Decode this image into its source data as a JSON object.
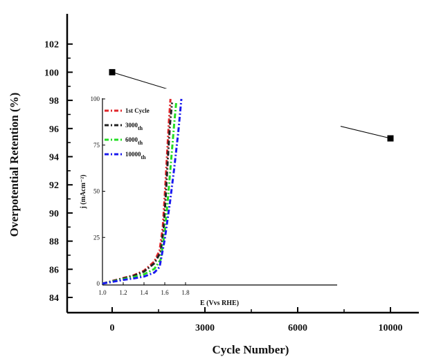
{
  "chart_data": [
    {
      "type": "line",
      "title": "",
      "xlabel": "Cycle Number)",
      "ylabel": "Overpotential Retention (%)",
      "x_tick_labels": [
        "0",
        "3000",
        "6000",
        "10000"
      ],
      "y_tick_labels": [
        "84",
        "86",
        "88",
        "90",
        "92",
        "94",
        "96",
        "98",
        "100",
        "102"
      ],
      "ylim": [
        84,
        102
      ],
      "grid": false,
      "legend": "none",
      "series": [
        {
          "x": [
            "0",
            "3000",
            "6000",
            "10000"
          ],
          "values": [
            100.0,
            98.0,
            96.9,
            95.3
          ],
          "marker": "square",
          "color": "#000000"
        }
      ]
    },
    {
      "type": "line",
      "title": "",
      "xlabel": "E (Vvs RHE)",
      "ylabel": "j (mAcm⁻²)",
      "xlim": [
        1.0,
        1.9
      ],
      "ylim": [
        0,
        100
      ],
      "x_tick_labels": [
        "1.0",
        "1.2",
        "1.4",
        "1.6",
        "1.8"
      ],
      "y_tick_labels": [
        "0",
        "25",
        "50",
        "75",
        "100"
      ],
      "grid": false,
      "legend": "top-left",
      "legend_entries": [
        {
          "label": "1st Cycle",
          "sub": ""
        },
        {
          "label": "3000",
          "sub": "th"
        },
        {
          "label": "6000",
          "sub": "th"
        },
        {
          "label": "10000",
          "sub": "th"
        }
      ],
      "series": [
        {
          "color": "#e0262a",
          "dash": "dash-dot",
          "x": [
            1.0,
            1.1,
            1.2,
            1.3,
            1.4,
            1.5,
            1.55,
            1.58,
            1.6,
            1.62,
            1.64,
            1.655
          ],
          "y": [
            0,
            1.5,
            3,
            4.5,
            7,
            12,
            18,
            30,
            48,
            68,
            88,
            100
          ]
        },
        {
          "color": "#222222",
          "dash": "dash-dot",
          "x": [
            1.0,
            1.1,
            1.2,
            1.3,
            1.4,
            1.5,
            1.56,
            1.59,
            1.61,
            1.63,
            1.65,
            1.67
          ],
          "y": [
            0,
            1.4,
            2.8,
            4.2,
            6.5,
            11,
            17,
            30,
            48,
            68,
            86,
            98
          ]
        },
        {
          "color": "#22dd22",
          "dash": "dash-dot",
          "x": [
            1.0,
            1.1,
            1.2,
            1.3,
            1.4,
            1.5,
            1.56,
            1.6,
            1.63,
            1.66,
            1.69,
            1.71
          ],
          "y": [
            0,
            1.2,
            2.4,
            3.5,
            5,
            8,
            13,
            28,
            46,
            66,
            86,
            98
          ]
        },
        {
          "color": "#1a1aee",
          "dash": "dash-dot",
          "x": [
            1.0,
            1.1,
            1.2,
            1.3,
            1.4,
            1.5,
            1.55,
            1.6,
            1.65,
            1.69,
            1.73,
            1.76
          ],
          "y": [
            0,
            1,
            2,
            2.8,
            3.8,
            6,
            9,
            24,
            44,
            62,
            82,
            100
          ]
        }
      ]
    }
  ]
}
